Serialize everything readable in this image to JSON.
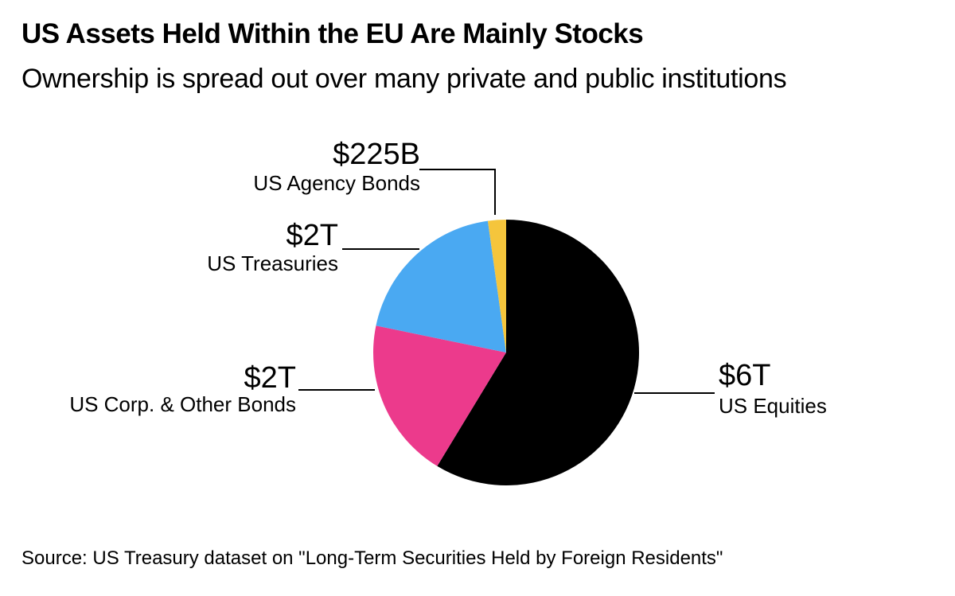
{
  "header": {
    "title": "US Assets Held Within the EU Are Mainly Stocks",
    "subtitle": "Ownership is spread out over many private and public institutions"
  },
  "source_note": "Source: US Treasury dataset on \"Long-Term Securities Held by Foreign Residents\"",
  "chart_data": {
    "type": "pie",
    "title": "US Assets Held Within the EU Are Mainly Stocks",
    "subtitle": "Ownership is spread out over many private and public institutions",
    "unit": "USD",
    "start_angle_deg": 0,
    "direction": "clockwise",
    "legend_position": "callouts",
    "total_billions": 10225,
    "slices": [
      {
        "label": "US Equities",
        "value_label": "$6T",
        "value_billions": 6000,
        "color": "#000000"
      },
      {
        "label": "US Corp. & Other Bonds",
        "value_label": "$2T",
        "value_billions": 2000,
        "color": "#EC3A8C"
      },
      {
        "label": "US Treasuries",
        "value_label": "$2T",
        "value_billions": 2000,
        "color": "#4AA9F2"
      },
      {
        "label": "US Agency Bonds",
        "value_label": "$225B",
        "value_billions": 225,
        "color": "#F5C53C"
      }
    ]
  }
}
